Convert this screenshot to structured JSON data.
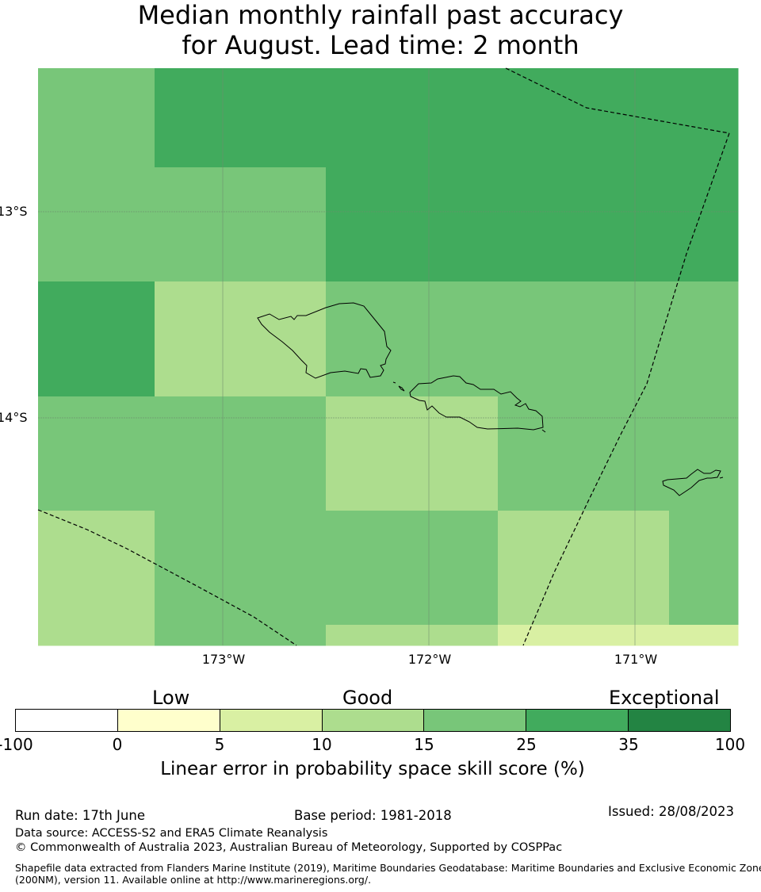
{
  "title": {
    "line1": "Median monthly rainfall past accuracy",
    "line2": "for August. Lead time: 2 month"
  },
  "map": {
    "lat_labels": [
      "13°S",
      "14°S"
    ],
    "lon_labels": [
      "173°W",
      "172°W",
      "171°W"
    ],
    "cell_values": [
      [
        15,
        25,
        25,
        25,
        25,
        25,
        25,
        25
      ],
      [
        15,
        15,
        15,
        25,
        25,
        25,
        25,
        25
      ],
      [
        25,
        10,
        10,
        15,
        15,
        15,
        15,
        15
      ],
      [
        15,
        15,
        15,
        10,
        10,
        15,
        15,
        15
      ],
      [
        10,
        15,
        15,
        15,
        15,
        10,
        10,
        15
      ],
      [
        10,
        15,
        15,
        10,
        10,
        5,
        5,
        5
      ]
    ],
    "colors": {
      "land_outline": "#000000",
      "boundary": "#000000",
      "gridline": "#6e8c6e"
    }
  },
  "legend": {
    "categories": [
      "Low",
      "Good",
      "Exceptional"
    ],
    "ticks": [
      "-100",
      "0",
      "5",
      "10",
      "15",
      "25",
      "35",
      "100"
    ],
    "colors": [
      "#ffffff",
      "#ffffcc",
      "#d9f0a3",
      "#addd8e",
      "#78c679",
      "#41ab5d",
      "#238443"
    ],
    "title": "Linear error in probability space skill score (%)"
  },
  "footer": {
    "run_date": "Run date: 17th June",
    "base_period": "Base period: 1981-2018",
    "issued": "Issued: 28/08/2023",
    "data_source": "Data source: ACCESS-S2 and ERA5 Climate Reanalysis",
    "copyright": "© Commonwealth of Australia 2023, Australian Bureau of Meteorology, Supported by COSPPac",
    "shapefile_line1": "Shapefile data extracted from Flanders Marine Institute (2019), Maritime Boundaries Geodatabase: Maritime Boundaries and Exclusive Economic Zones",
    "shapefile_line2": "(200NM), version 11. Available online at http://www.marineregions.org/."
  }
}
